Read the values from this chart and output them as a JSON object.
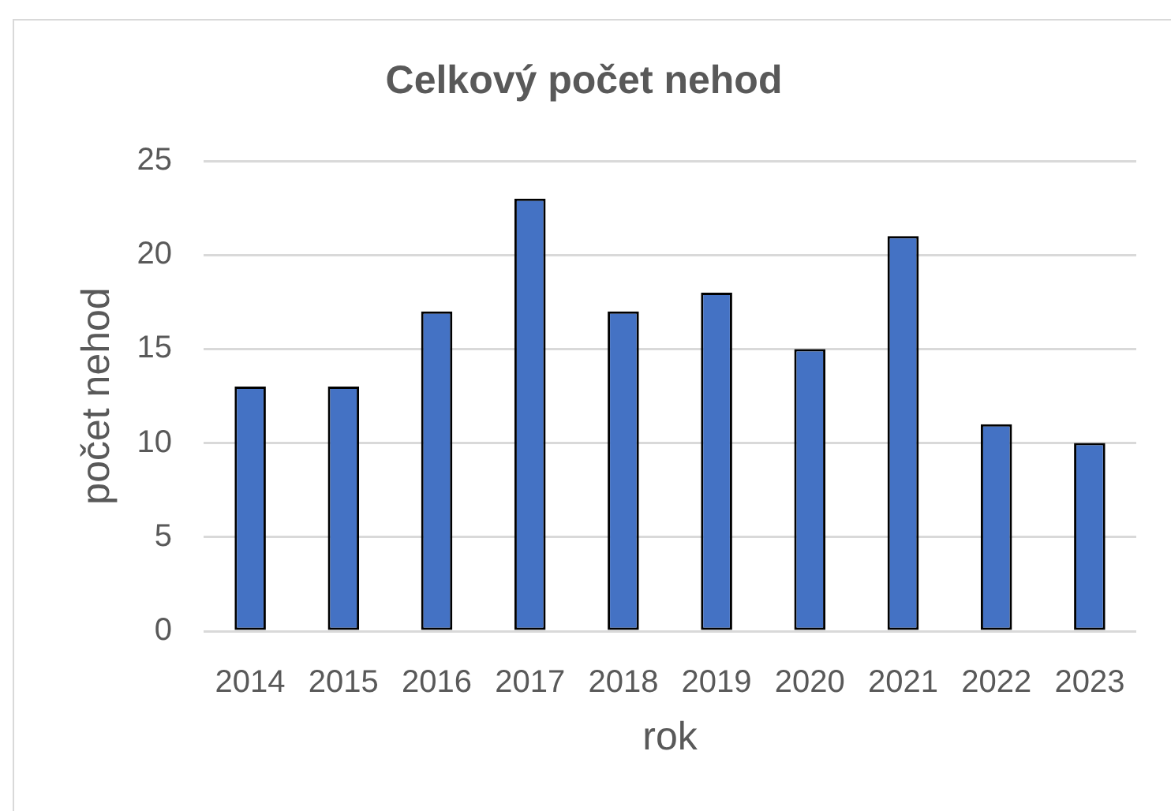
{
  "chart_data": {
    "type": "bar",
    "title": "Celkový počet nehod",
    "xlabel": "rok",
    "ylabel": "počet nehod",
    "categories": [
      "2014",
      "2015",
      "2016",
      "2017",
      "2018",
      "2019",
      "2020",
      "2021",
      "2022",
      "2023"
    ],
    "values": [
      13,
      13,
      17,
      23,
      17,
      18,
      15,
      21,
      11,
      10
    ],
    "color": "#4472c4",
    "ylim": [
      0,
      25
    ],
    "yticks": [
      0,
      5,
      10,
      15,
      20,
      25
    ],
    "grid": "y"
  }
}
